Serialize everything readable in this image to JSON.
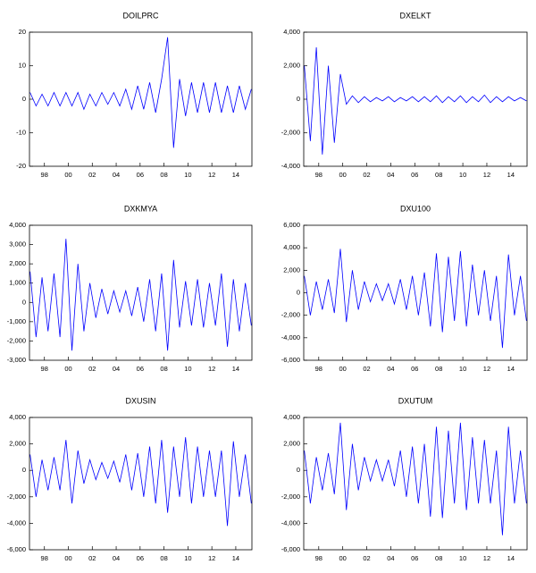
{
  "chart_data": [
    {
      "type": "line",
      "title": "DOILPRC",
      "color": "#0000ff",
      "x": [
        1996.8,
        1997.3,
        1997.8,
        1998.3,
        1998.8,
        1999.3,
        1999.8,
        2000.3,
        2000.8,
        2001.3,
        2001.8,
        2002.3,
        2002.8,
        2003.3,
        2003.8,
        2004.3,
        2004.8,
        2005.3,
        2005.8,
        2006.3,
        2006.8,
        2007.3,
        2007.8,
        2008.3,
        2008.8,
        2009.3,
        2009.8,
        2010.3,
        2010.8,
        2011.3,
        2011.8,
        2012.3,
        2012.8,
        2013.3,
        2013.8,
        2014.3,
        2014.8,
        2015.3
      ],
      "values": [
        2,
        -2,
        1.5,
        -2,
        2,
        -2,
        2,
        -2,
        2,
        -3,
        1.5,
        -2,
        2,
        -1.5,
        2,
        -2,
        3,
        -3,
        4,
        -3,
        5,
        -4,
        6,
        18.5,
        -14.5,
        6,
        -5,
        5,
        -4,
        5,
        -4,
        5,
        -4,
        4,
        -4,
        4,
        -3,
        3
      ],
      "xlim": [
        1996.75,
        2015.35
      ],
      "xticks": [
        {
          "value": 1998,
          "label": "98"
        },
        {
          "value": 2000,
          "label": "00"
        },
        {
          "value": 2002,
          "label": "02"
        },
        {
          "value": 2004,
          "label": "04"
        },
        {
          "value": 2006,
          "label": "06"
        },
        {
          "value": 2008,
          "label": "08"
        },
        {
          "value": 2010,
          "label": "10"
        },
        {
          "value": 2012,
          "label": "12"
        },
        {
          "value": 2014,
          "label": "14"
        }
      ],
      "ylim": [
        -20,
        20
      ],
      "yticks": [
        -20,
        -10,
        0,
        10,
        20
      ]
    },
    {
      "type": "line",
      "title": "DXELKT",
      "color": "#0000ff",
      "x": [
        1996.8,
        1997.3,
        1997.8,
        1998.3,
        1998.8,
        1999.3,
        1999.8,
        2000.3,
        2000.8,
        2001.3,
        2001.8,
        2002.3,
        2002.8,
        2003.3,
        2003.8,
        2004.3,
        2004.8,
        2005.3,
        2005.8,
        2006.3,
        2006.8,
        2007.3,
        2007.8,
        2008.3,
        2008.8,
        2009.3,
        2009.8,
        2010.3,
        2010.8,
        2011.3,
        2011.8,
        2012.3,
        2012.8,
        2013.3,
        2013.8,
        2014.3,
        2014.8,
        2015.3
      ],
      "values": [
        2000,
        -2500,
        3100,
        -3300,
        2000,
        -2600,
        1500,
        -300,
        200,
        -200,
        150,
        -150,
        100,
        -100,
        150,
        -150,
        100,
        -100,
        150,
        -150,
        150,
        -150,
        200,
        -200,
        150,
        -150,
        200,
        -200,
        150,
        -150,
        250,
        -200,
        150,
        -150,
        150,
        -100,
        100,
        -100
      ],
      "xlim": [
        1996.75,
        2015.35
      ],
      "xticks": [
        {
          "value": 1998,
          "label": "98"
        },
        {
          "value": 2000,
          "label": "00"
        },
        {
          "value": 2002,
          "label": "02"
        },
        {
          "value": 2004,
          "label": "04"
        },
        {
          "value": 2006,
          "label": "06"
        },
        {
          "value": 2008,
          "label": "08"
        },
        {
          "value": 2010,
          "label": "10"
        },
        {
          "value": 2012,
          "label": "12"
        },
        {
          "value": 2014,
          "label": "14"
        }
      ],
      "ylim": [
        -4000,
        4000
      ],
      "yticks": [
        {
          "value": -4000,
          "label": "-4,000"
        },
        {
          "value": -2000,
          "label": "-2,000"
        },
        0,
        {
          "value": 2000,
          "label": "2,000"
        },
        {
          "value": 4000,
          "label": "4,000"
        }
      ]
    },
    {
      "type": "line",
      "title": "DXKMYA",
      "color": "#0000ff",
      "x": [
        1996.8,
        1997.3,
        1997.8,
        1998.3,
        1998.8,
        1999.3,
        1999.8,
        2000.3,
        2000.8,
        2001.3,
        2001.8,
        2002.3,
        2002.8,
        2003.3,
        2003.8,
        2004.3,
        2004.8,
        2005.3,
        2005.8,
        2006.3,
        2006.8,
        2007.3,
        2007.8,
        2008.3,
        2008.8,
        2009.3,
        2009.8,
        2010.3,
        2010.8,
        2011.3,
        2011.8,
        2012.3,
        2012.8,
        2013.3,
        2013.8,
        2014.3,
        2014.8,
        2015.3
      ],
      "values": [
        1600,
        -1800,
        1300,
        -1500,
        1500,
        -1800,
        3300,
        -2500,
        2000,
        -1500,
        1000,
        -800,
        700,
        -600,
        600,
        -500,
        600,
        -700,
        800,
        -1000,
        1200,
        -1500,
        1500,
        -2500,
        2200,
        -1300,
        1100,
        -1200,
        1200,
        -1300,
        1000,
        -1200,
        1500,
        -2300,
        1200,
        -1500,
        1000,
        -1200
      ],
      "xlim": [
        1996.75,
        2015.35
      ],
      "xticks": [
        {
          "value": 1998,
          "label": "98"
        },
        {
          "value": 2000,
          "label": "00"
        },
        {
          "value": 2002,
          "label": "02"
        },
        {
          "value": 2004,
          "label": "04"
        },
        {
          "value": 2006,
          "label": "06"
        },
        {
          "value": 2008,
          "label": "08"
        },
        {
          "value": 2010,
          "label": "10"
        },
        {
          "value": 2012,
          "label": "12"
        },
        {
          "value": 2014,
          "label": "14"
        }
      ],
      "ylim": [
        -3000,
        4000
      ],
      "yticks": [
        {
          "value": -3000,
          "label": "-3,000"
        },
        {
          "value": -2000,
          "label": "-2,000"
        },
        {
          "value": -1000,
          "label": "-1,000"
        },
        0,
        {
          "value": 1000,
          "label": "1,000"
        },
        {
          "value": 2000,
          "label": "2,000"
        },
        {
          "value": 3000,
          "label": "3,000"
        },
        {
          "value": 4000,
          "label": "4,000"
        }
      ]
    },
    {
      "type": "line",
      "title": "DXU100",
      "color": "#0000ff",
      "x": [
        1996.8,
        1997.3,
        1997.8,
        1998.3,
        1998.8,
        1999.3,
        1999.8,
        2000.3,
        2000.8,
        2001.3,
        2001.8,
        2002.3,
        2002.8,
        2003.3,
        2003.8,
        2004.3,
        2004.8,
        2005.3,
        2005.8,
        2006.3,
        2006.8,
        2007.3,
        2007.8,
        2008.3,
        2008.8,
        2009.3,
        2009.8,
        2010.3,
        2010.8,
        2011.3,
        2011.8,
        2012.3,
        2012.8,
        2013.3,
        2013.8,
        2014.3,
        2014.8,
        2015.3
      ],
      "values": [
        1500,
        -2000,
        1000,
        -1500,
        1200,
        -1800,
        3900,
        -2600,
        2000,
        -1500,
        1000,
        -800,
        800,
        -700,
        800,
        -1000,
        1200,
        -1500,
        1500,
        -2000,
        1800,
        -3000,
        3500,
        -3500,
        3200,
        -2500,
        3700,
        -3000,
        2500,
        -2000,
        2000,
        -2500,
        1500,
        -4900,
        3400,
        -2000,
        1500,
        -2500
      ],
      "xlim": [
        1996.75,
        2015.35
      ],
      "xticks": [
        {
          "value": 1998,
          "label": "98"
        },
        {
          "value": 2000,
          "label": "00"
        },
        {
          "value": 2002,
          "label": "02"
        },
        {
          "value": 2004,
          "label": "04"
        },
        {
          "value": 2006,
          "label": "06"
        },
        {
          "value": 2008,
          "label": "08"
        },
        {
          "value": 2010,
          "label": "10"
        },
        {
          "value": 2012,
          "label": "12"
        },
        {
          "value": 2014,
          "label": "14"
        }
      ],
      "ylim": [
        -6000,
        6000
      ],
      "yticks": [
        {
          "value": -6000,
          "label": "-6,000"
        },
        {
          "value": -4000,
          "label": "-4,000"
        },
        {
          "value": -2000,
          "label": "-2,000"
        },
        0,
        {
          "value": 2000,
          "label": "2,000"
        },
        {
          "value": 4000,
          "label": "4,000"
        },
        {
          "value": 6000,
          "label": "6,000"
        }
      ]
    },
    {
      "type": "line",
      "title": "DXUSIN",
      "color": "#0000ff",
      "x": [
        1996.8,
        1997.3,
        1997.8,
        1998.3,
        1998.8,
        1999.3,
        1999.8,
        2000.3,
        2000.8,
        2001.3,
        2001.8,
        2002.3,
        2002.8,
        2003.3,
        2003.8,
        2004.3,
        2004.8,
        2005.3,
        2005.8,
        2006.3,
        2006.8,
        2007.3,
        2007.8,
        2008.3,
        2008.8,
        2009.3,
        2009.8,
        2010.3,
        2010.8,
        2011.3,
        2011.8,
        2012.3,
        2012.8,
        2013.3,
        2013.8,
        2014.3,
        2014.8,
        2015.3
      ],
      "values": [
        1200,
        -2000,
        800,
        -1500,
        1000,
        -1500,
        2300,
        -2500,
        1500,
        -1000,
        800,
        -700,
        600,
        -600,
        700,
        -900,
        1200,
        -1500,
        1300,
        -2000,
        1800,
        -2500,
        2300,
        -3200,
        1800,
        -2000,
        2500,
        -2500,
        1800,
        -2000,
        1500,
        -2000,
        1500,
        -4200,
        2200,
        -2000,
        1200,
        -2500
      ],
      "xlim": [
        1996.75,
        2015.35
      ],
      "xticks": [
        {
          "value": 1998,
          "label": "98"
        },
        {
          "value": 2000,
          "label": "00"
        },
        {
          "value": 2002,
          "label": "02"
        },
        {
          "value": 2004,
          "label": "04"
        },
        {
          "value": 2006,
          "label": "06"
        },
        {
          "value": 2008,
          "label": "08"
        },
        {
          "value": 2010,
          "label": "10"
        },
        {
          "value": 2012,
          "label": "12"
        },
        {
          "value": 2014,
          "label": "14"
        }
      ],
      "ylim": [
        -6000,
        4000
      ],
      "yticks": [
        {
          "value": -6000,
          "label": "-6,000"
        },
        {
          "value": -4000,
          "label": "-4,000"
        },
        {
          "value": -2000,
          "label": "-2,000"
        },
        0,
        {
          "value": 2000,
          "label": "2,000"
        },
        {
          "value": 4000,
          "label": "4,000"
        }
      ]
    },
    {
      "type": "line",
      "title": "DXUTUM",
      "color": "#0000ff",
      "x": [
        1996.8,
        1997.3,
        1997.8,
        1998.3,
        1998.8,
        1999.3,
        1999.8,
        2000.3,
        2000.8,
        2001.3,
        2001.8,
        2002.3,
        2002.8,
        2003.3,
        2003.8,
        2004.3,
        2004.8,
        2005.3,
        2005.8,
        2006.3,
        2006.8,
        2007.3,
        2007.8,
        2008.3,
        2008.8,
        2009.3,
        2009.8,
        2010.3,
        2010.8,
        2011.3,
        2011.8,
        2012.3,
        2012.8,
        2013.3,
        2013.8,
        2014.3,
        2014.8,
        2015.3
      ],
      "values": [
        1500,
        -2500,
        1000,
        -1500,
        1300,
        -1800,
        3600,
        -3000,
        2000,
        -1500,
        1000,
        -800,
        800,
        -800,
        800,
        -1200,
        1500,
        -2000,
        1800,
        -2500,
        2000,
        -3500,
        3300,
        -3600,
        3000,
        -2500,
        3600,
        -3000,
        2500,
        -2500,
        2300,
        -2500,
        1500,
        -4900,
        3300,
        -2500,
        1500,
        -2500
      ],
      "xlim": [
        1996.75,
        2015.35
      ],
      "xticks": [
        {
          "value": 1998,
          "label": "98"
        },
        {
          "value": 2000,
          "label": "00"
        },
        {
          "value": 2002,
          "label": "02"
        },
        {
          "value": 2004,
          "label": "04"
        },
        {
          "value": 2006,
          "label": "06"
        },
        {
          "value": 2008,
          "label": "08"
        },
        {
          "value": 2010,
          "label": "10"
        },
        {
          "value": 2012,
          "label": "12"
        },
        {
          "value": 2014,
          "label": "14"
        }
      ],
      "ylim": [
        -6000,
        4000
      ],
      "yticks": [
        {
          "value": -6000,
          "label": "-6,000"
        },
        {
          "value": -4000,
          "label": "-4,000"
        },
        {
          "value": -2000,
          "label": "-2,000"
        },
        0,
        {
          "value": 2000,
          "label": "2,000"
        },
        {
          "value": 4000,
          "label": "4,000"
        }
      ]
    }
  ]
}
